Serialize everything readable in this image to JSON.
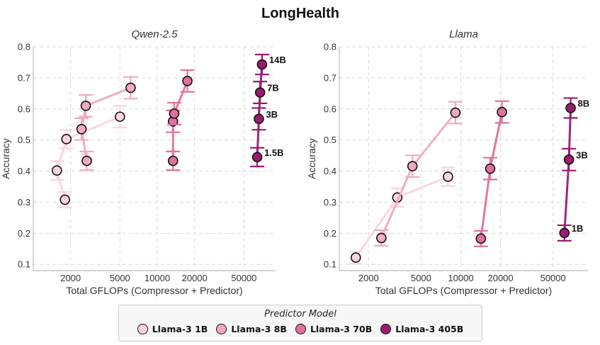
{
  "figure_title": "LongHealth",
  "legend": {
    "title": "Predictor Model",
    "entries": [
      {
        "label": "Llama-3 1B",
        "color": "#fbd4e2"
      },
      {
        "label": "Llama-3 8B",
        "color": "#f2a8c4"
      },
      {
        "label": "Llama-3 70B",
        "color": "#e0709c"
      },
      {
        "label": "Llama-3 405B",
        "color": "#9b1b6e"
      }
    ]
  },
  "chart_data": [
    {
      "type": "line",
      "title": "Qwen-2.5",
      "xlabel": "Total GFLOPs (Compressor + Predictor)",
      "ylabel": "Accuracy",
      "xscale": "log",
      "xlim": [
        1000,
        90000
      ],
      "ylim": [
        0.08,
        0.8
      ],
      "xticks": [
        2000,
        5000,
        10000,
        20000,
        50000
      ],
      "xtick_labels": [
        "2000",
        "5000",
        "10000",
        "20000",
        "50000"
      ],
      "yticks": [
        0.1,
        0.2,
        0.3,
        0.4,
        0.5,
        0.6,
        0.7,
        0.8
      ],
      "ytick_labels": [
        "0.1",
        "0.2",
        "0.3",
        "0.4",
        "0.5",
        "0.6",
        "0.7",
        "0.8"
      ],
      "grid": true,
      "series": [
        {
          "name": "Llama-3 1B",
          "points": [
            {
              "x": 1550,
              "y": 0.402,
              "err": 0.03
            },
            {
              "x": 1800,
              "y": 0.308,
              "err": 0.025
            },
            {
              "x": 1850,
              "y": 0.503,
              "err": 0.03
            },
            {
              "x": 5000,
              "y": 0.575,
              "err": 0.035
            }
          ]
        },
        {
          "name": "Llama-3 8B",
          "points": [
            {
              "x": 2450,
              "y": 0.535,
              "err": 0.035
            },
            {
              "x": 2700,
              "y": 0.433,
              "err": 0.03
            },
            {
              "x": 2650,
              "y": 0.61,
              "err": 0.035
            },
            {
              "x": 6100,
              "y": 0.668,
              "err": 0.035
            }
          ]
        },
        {
          "name": "Llama-3 70B",
          "points": [
            {
              "x": 13400,
              "y": 0.433,
              "err": 0.03
            },
            {
              "x": 13400,
              "y": 0.56,
              "err": 0.035
            },
            {
              "x": 13700,
              "y": 0.585,
              "err": 0.035
            },
            {
              "x": 17500,
              "y": 0.69,
              "err": 0.035
            }
          ]
        },
        {
          "name": "Llama-3 405B",
          "points": [
            {
              "x": 64000,
              "y": 0.445,
              "err": 0.03,
              "label": "1.5B"
            },
            {
              "x": 66000,
              "y": 0.568,
              "err": 0.035,
              "label": "3B"
            },
            {
              "x": 67500,
              "y": 0.653,
              "err": 0.035,
              "label": "7B"
            },
            {
              "x": 70000,
              "y": 0.743,
              "err": 0.032,
              "label": "14B"
            }
          ]
        }
      ]
    },
    {
      "type": "line",
      "title": "Llama",
      "xlabel": "Total GFLOPs (Compressor + Predictor)",
      "ylabel": "Accuracy",
      "xscale": "log",
      "xlim": [
        1200,
        92000
      ],
      "ylim": [
        0.08,
        0.8
      ],
      "xticks": [
        2000,
        5000,
        10000,
        20000,
        50000
      ],
      "xtick_labels": [
        "2000",
        "5000",
        "10000",
        "20000",
        "50000"
      ],
      "yticks": [
        0.1,
        0.2,
        0.3,
        0.4,
        0.5,
        0.6,
        0.7,
        0.8
      ],
      "ytick_labels": [
        "0.1",
        "0.2",
        "0.3",
        "0.4",
        "0.5",
        "0.6",
        "0.7",
        "0.8"
      ],
      "grid": true,
      "series": [
        {
          "name": "Llama-3 1B",
          "points": [
            {
              "x": 1600,
              "y": 0.122,
              "err": 0.02
            },
            {
              "x": 3300,
              "y": 0.315,
              "err": 0.03
            },
            {
              "x": 8000,
              "y": 0.382,
              "err": 0.03
            }
          ]
        },
        {
          "name": "Llama-3 8B",
          "points": [
            {
              "x": 2500,
              "y": 0.185,
              "err": 0.025
            },
            {
              "x": 4300,
              "y": 0.416,
              "err": 0.035
            },
            {
              "x": 9100,
              "y": 0.588,
              "err": 0.035
            }
          ]
        },
        {
          "name": "Llama-3 70B",
          "points": [
            {
              "x": 14200,
              "y": 0.183,
              "err": 0.025
            },
            {
              "x": 16700,
              "y": 0.408,
              "err": 0.035
            },
            {
              "x": 20500,
              "y": 0.59,
              "err": 0.035
            }
          ]
        },
        {
          "name": "Llama-3 405B",
          "points": [
            {
              "x": 61000,
              "y": 0.201,
              "err": 0.025,
              "label": "1B"
            },
            {
              "x": 66000,
              "y": 0.437,
              "err": 0.035,
              "label": "3B"
            },
            {
              "x": 68000,
              "y": 0.603,
              "err": 0.032,
              "label": "8B"
            }
          ]
        }
      ]
    }
  ]
}
